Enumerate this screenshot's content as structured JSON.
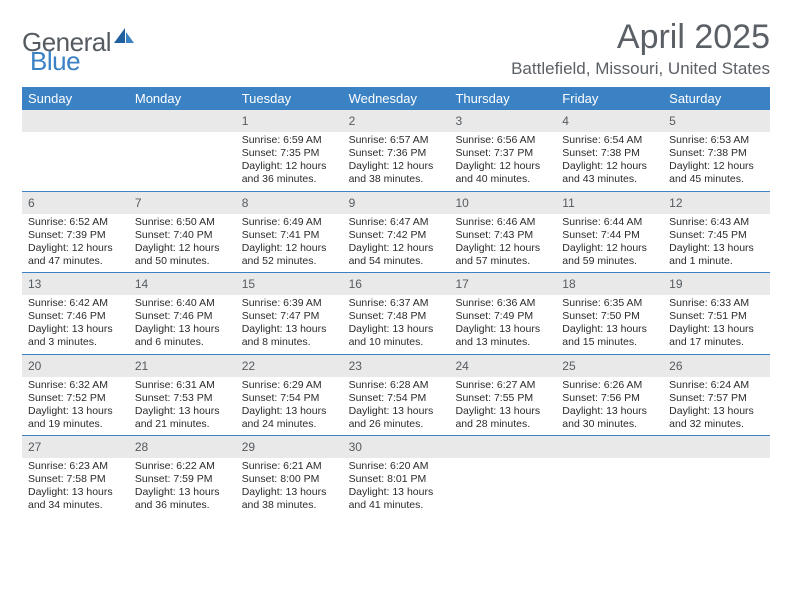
{
  "logo": {
    "general": "General",
    "blue": "Blue"
  },
  "title": "April 2025",
  "location": "Battlefield, Missouri, United States",
  "colors": {
    "header_bg": "#3b82c4",
    "header_text": "#ffffff",
    "daynum_bg": "#e9e9e9",
    "text": "#2b2b2b",
    "title_text": "#5b6066"
  },
  "day_names": [
    "Sunday",
    "Monday",
    "Tuesday",
    "Wednesday",
    "Thursday",
    "Friday",
    "Saturday"
  ],
  "weeks": [
    [
      {
        "n": "",
        "sr": "",
        "ss": "",
        "dl": ""
      },
      {
        "n": "",
        "sr": "",
        "ss": "",
        "dl": ""
      },
      {
        "n": "1",
        "sr": "6:59 AM",
        "ss": "7:35 PM",
        "dl": "12 hours and 36 minutes."
      },
      {
        "n": "2",
        "sr": "6:57 AM",
        "ss": "7:36 PM",
        "dl": "12 hours and 38 minutes."
      },
      {
        "n": "3",
        "sr": "6:56 AM",
        "ss": "7:37 PM",
        "dl": "12 hours and 40 minutes."
      },
      {
        "n": "4",
        "sr": "6:54 AM",
        "ss": "7:38 PM",
        "dl": "12 hours and 43 minutes."
      },
      {
        "n": "5",
        "sr": "6:53 AM",
        "ss": "7:38 PM",
        "dl": "12 hours and 45 minutes."
      }
    ],
    [
      {
        "n": "6",
        "sr": "6:52 AM",
        "ss": "7:39 PM",
        "dl": "12 hours and 47 minutes."
      },
      {
        "n": "7",
        "sr": "6:50 AM",
        "ss": "7:40 PM",
        "dl": "12 hours and 50 minutes."
      },
      {
        "n": "8",
        "sr": "6:49 AM",
        "ss": "7:41 PM",
        "dl": "12 hours and 52 minutes."
      },
      {
        "n": "9",
        "sr": "6:47 AM",
        "ss": "7:42 PM",
        "dl": "12 hours and 54 minutes."
      },
      {
        "n": "10",
        "sr": "6:46 AM",
        "ss": "7:43 PM",
        "dl": "12 hours and 57 minutes."
      },
      {
        "n": "11",
        "sr": "6:44 AM",
        "ss": "7:44 PM",
        "dl": "12 hours and 59 minutes."
      },
      {
        "n": "12",
        "sr": "6:43 AM",
        "ss": "7:45 PM",
        "dl": "13 hours and 1 minute."
      }
    ],
    [
      {
        "n": "13",
        "sr": "6:42 AM",
        "ss": "7:46 PM",
        "dl": "13 hours and 3 minutes."
      },
      {
        "n": "14",
        "sr": "6:40 AM",
        "ss": "7:46 PM",
        "dl": "13 hours and 6 minutes."
      },
      {
        "n": "15",
        "sr": "6:39 AM",
        "ss": "7:47 PM",
        "dl": "13 hours and 8 minutes."
      },
      {
        "n": "16",
        "sr": "6:37 AM",
        "ss": "7:48 PM",
        "dl": "13 hours and 10 minutes."
      },
      {
        "n": "17",
        "sr": "6:36 AM",
        "ss": "7:49 PM",
        "dl": "13 hours and 13 minutes."
      },
      {
        "n": "18",
        "sr": "6:35 AM",
        "ss": "7:50 PM",
        "dl": "13 hours and 15 minutes."
      },
      {
        "n": "19",
        "sr": "6:33 AM",
        "ss": "7:51 PM",
        "dl": "13 hours and 17 minutes."
      }
    ],
    [
      {
        "n": "20",
        "sr": "6:32 AM",
        "ss": "7:52 PM",
        "dl": "13 hours and 19 minutes."
      },
      {
        "n": "21",
        "sr": "6:31 AM",
        "ss": "7:53 PM",
        "dl": "13 hours and 21 minutes."
      },
      {
        "n": "22",
        "sr": "6:29 AM",
        "ss": "7:54 PM",
        "dl": "13 hours and 24 minutes."
      },
      {
        "n": "23",
        "sr": "6:28 AM",
        "ss": "7:54 PM",
        "dl": "13 hours and 26 minutes."
      },
      {
        "n": "24",
        "sr": "6:27 AM",
        "ss": "7:55 PM",
        "dl": "13 hours and 28 minutes."
      },
      {
        "n": "25",
        "sr": "6:26 AM",
        "ss": "7:56 PM",
        "dl": "13 hours and 30 minutes."
      },
      {
        "n": "26",
        "sr": "6:24 AM",
        "ss": "7:57 PM",
        "dl": "13 hours and 32 minutes."
      }
    ],
    [
      {
        "n": "27",
        "sr": "6:23 AM",
        "ss": "7:58 PM",
        "dl": "13 hours and 34 minutes."
      },
      {
        "n": "28",
        "sr": "6:22 AM",
        "ss": "7:59 PM",
        "dl": "13 hours and 36 minutes."
      },
      {
        "n": "29",
        "sr": "6:21 AM",
        "ss": "8:00 PM",
        "dl": "13 hours and 38 minutes."
      },
      {
        "n": "30",
        "sr": "6:20 AM",
        "ss": "8:01 PM",
        "dl": "13 hours and 41 minutes."
      },
      {
        "n": "",
        "sr": "",
        "ss": "",
        "dl": ""
      },
      {
        "n": "",
        "sr": "",
        "ss": "",
        "dl": ""
      },
      {
        "n": "",
        "sr": "",
        "ss": "",
        "dl": ""
      }
    ]
  ],
  "labels": {
    "sunrise": "Sunrise: ",
    "sunset": "Sunset: ",
    "daylight": "Daylight: "
  }
}
